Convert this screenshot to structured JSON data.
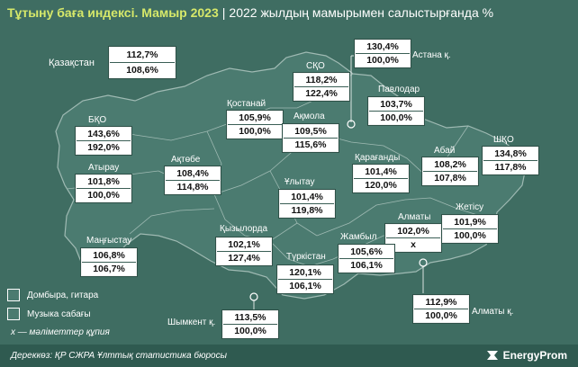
{
  "header": {
    "title": "Тұтыну баға индексі. Мамыр 2023",
    "separator": "|",
    "subtitle": "2022 жылдың мамырымен салыстырғанда %"
  },
  "colors": {
    "background": "#3f6d62",
    "map_fill": "#4b7b70",
    "map_border": "#9fbab3",
    "title_accent": "#d6e86a"
  },
  "regions": [
    {
      "id": "kazakhstan",
      "name": "Қазақстан",
      "guitar": "112,7%",
      "music_lesson": "108,6%"
    },
    {
      "id": "astana",
      "name": "Астана қ.",
      "guitar": "130,4%",
      "music_lesson": "100,0%"
    },
    {
      "id": "sko",
      "name": "СҚО",
      "guitar": "118,2%",
      "music_lesson": "122,4%"
    },
    {
      "id": "pavlodar",
      "name": "Павлодар",
      "guitar": "103,7%",
      "music_lesson": "100,0%"
    },
    {
      "id": "kostanay",
      "name": "Қостанай",
      "guitar": "105,9%",
      "music_lesson": "100,0%"
    },
    {
      "id": "akmola",
      "name": "Ақмола",
      "guitar": "109,5%",
      "music_lesson": "115,6%"
    },
    {
      "id": "bko",
      "name": "БҚО",
      "guitar": "143,6%",
      "music_lesson": "192,0%"
    },
    {
      "id": "atyrau",
      "name": "Атырау",
      "guitar": "101,8%",
      "music_lesson": "100,0%"
    },
    {
      "id": "aktobe",
      "name": "Ақтөбе",
      "guitar": "108,4%",
      "music_lesson": "114,8%"
    },
    {
      "id": "karaganda",
      "name": "Қарағанды",
      "guitar": "101,4%",
      "music_lesson": "120,0%"
    },
    {
      "id": "abai",
      "name": "Абай",
      "guitar": "108,2%",
      "music_lesson": "107,8%"
    },
    {
      "id": "vko",
      "name": "ШҚО",
      "guitar": "134,8%",
      "music_lesson": "117,8%"
    },
    {
      "id": "ulytau",
      "name": "Ұлытау",
      "guitar": "101,4%",
      "music_lesson": "119,8%"
    },
    {
      "id": "zhetysu",
      "name": "Жетісу",
      "guitar": "101,9%",
      "music_lesson": "100,0%"
    },
    {
      "id": "almaty_region",
      "name": "Алматы",
      "guitar": "102,0%",
      "music_lesson": "x"
    },
    {
      "id": "mangystau",
      "name": "Маңғыстау",
      "guitar": "106,8%",
      "music_lesson": "106,7%"
    },
    {
      "id": "kyzylorda",
      "name": "Қызылорда",
      "guitar": "102,1%",
      "music_lesson": "127,4%"
    },
    {
      "id": "zhambyl",
      "name": "Жамбыл",
      "guitar": "105,6%",
      "music_lesson": "106,1%"
    },
    {
      "id": "turkestan",
      "name": "Түркістан",
      "guitar": "120,1%",
      "music_lesson": "106,1%"
    },
    {
      "id": "almaty_city",
      "name": "Алматы қ.",
      "guitar": "112,9%",
      "music_lesson": "100,0%"
    },
    {
      "id": "shymkent",
      "name": "Шымкент қ.",
      "guitar": "113,5%",
      "music_lesson": "100,0%"
    }
  ],
  "legend": {
    "guitar": "Домбыра, гитара",
    "music_lesson": "Музыка сабағы"
  },
  "footnote": "х — мәліметтер құпия",
  "source": "Дереккөз: ҚР СЖРА Ұлттық статистика бюросы",
  "brand": "EnergyProm"
}
